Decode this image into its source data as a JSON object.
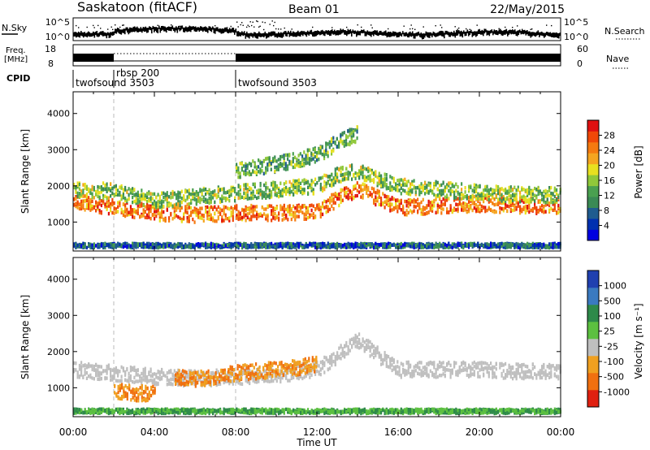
{
  "header": {
    "station": "Saskatoon (fitACF)",
    "beam": "Beam 01",
    "date": "22/May/2015"
  },
  "noise_panel": {
    "left_label": "N.Sky",
    "right_label": "N.Search",
    "left_ticks": [
      "10^5",
      "10^0"
    ],
    "right_ticks": [
      "10^5",
      "10^0"
    ]
  },
  "freq_panel": {
    "left_label_line1": "Freq.",
    "left_label_line2": "[MHz]",
    "left_ticks": [
      "18",
      "8"
    ],
    "right_ticks": [
      "60",
      "0"
    ],
    "right_label": "Nave"
  },
  "cpid_panel": {
    "label": "CPID",
    "segments": [
      {
        "name": "twofsound 3503",
        "start_hour": 0,
        "end_hour": 2
      },
      {
        "name": "rbsp 200",
        "start_hour": 2,
        "end_hour": 8
      },
      {
        "name": "twofsound 3503",
        "start_hour": 8,
        "end_hour": 24
      }
    ]
  },
  "colorbars": {
    "power": {
      "label": "Power [dB]",
      "ticks": [
        "28",
        "24",
        "20",
        "16",
        "12",
        "8",
        "4"
      ],
      "colors": [
        "#0000e0",
        "#0030b0",
        "#1f5c8f",
        "#3a8a55",
        "#4aa050",
        "#90c83a",
        "#e8e020",
        "#f5a520",
        "#f57a10",
        "#f04808",
        "#e01010"
      ]
    },
    "velocity": {
      "label": "Velocity [m s⁻¹]",
      "ticks": [
        "1000",
        "500",
        "100",
        "25",
        "-25",
        "-100",
        "-500",
        "-1000"
      ],
      "colors": [
        "#2040b0",
        "#3a7ac0",
        "#2e8a4a",
        "#5cc040",
        "#bfbfbf",
        "#f0a020",
        "#f07010",
        "#e02010"
      ]
    }
  },
  "chart_data": [
    {
      "type": "heatmap",
      "title": "Power",
      "xlabel": "Time UT",
      "ylabel": "Slant Range [km]",
      "xlim": [
        0,
        24
      ],
      "ylim": [
        200,
        4600
      ],
      "x_ticks": [
        "00:00",
        "04:00",
        "08:00",
        "12:00",
        "16:00",
        "20:00",
        "00:00"
      ],
      "y_ticks": [
        "1000",
        "2000",
        "3000",
        "4000"
      ],
      "bands": [
        {
          "x": [
            0,
            2,
            4,
            6,
            8,
            10,
            12,
            13,
            14,
            16,
            18,
            20,
            22,
            24
          ],
          "y": [
            1550,
            1400,
            1250,
            1200,
            1250,
            1250,
            1300,
            1650,
            1900,
            1400,
            1450,
            1500,
            1450,
            1450
          ],
          "level": 24
        },
        {
          "x": [
            0,
            2,
            4,
            6,
            8,
            10,
            12,
            13,
            14,
            16,
            18,
            20,
            22,
            24
          ],
          "y": [
            1900,
            1850,
            1600,
            1700,
            1800,
            1900,
            2000,
            2300,
            2400,
            2000,
            1900,
            1800,
            1750,
            1750
          ],
          "level": 14
        },
        {
          "x": [
            8,
            10,
            12,
            13,
            14
          ],
          "y": [
            2400,
            2600,
            2850,
            3200,
            3450
          ],
          "level": 12
        },
        {
          "x": [
            0,
            4,
            8,
            12,
            16,
            20,
            24
          ],
          "y": [
            350,
            350,
            350,
            350,
            350,
            350,
            350
          ],
          "level": 6
        }
      ]
    },
    {
      "type": "heatmap",
      "title": "Velocity",
      "xlabel": "Time UT",
      "ylabel": "Slant Range [km]",
      "xlim": [
        0,
        24
      ],
      "ylim": [
        200,
        4600
      ],
      "x_ticks": [
        "00:00",
        "04:00",
        "08:00",
        "12:00",
        "16:00",
        "20:00",
        "00:00"
      ],
      "y_ticks": [
        "1000",
        "2000",
        "3000",
        "4000"
      ],
      "bands": [
        {
          "x": [
            0,
            2,
            4,
            6,
            8,
            10,
            12,
            14,
            16,
            18,
            20,
            22,
            24
          ],
          "y": [
            1500,
            1400,
            1300,
            1250,
            1300,
            1350,
            1500,
            2300,
            1500,
            1500,
            1500,
            1450,
            1450
          ],
          "level": 0
        },
        {
          "x": [
            5,
            6,
            7,
            8,
            9,
            10,
            11,
            12
          ],
          "y": [
            1300,
            1250,
            1300,
            1400,
            1450,
            1500,
            1550,
            1650
          ],
          "level": -100
        },
        {
          "x": [
            2,
            3,
            4
          ],
          "y": [
            900,
            850,
            850
          ],
          "level": -100
        },
        {
          "x": [
            0,
            4,
            8,
            12,
            16,
            20,
            24
          ],
          "y": [
            350,
            350,
            350,
            350,
            350,
            350,
            350
          ],
          "level": 100
        }
      ]
    }
  ]
}
